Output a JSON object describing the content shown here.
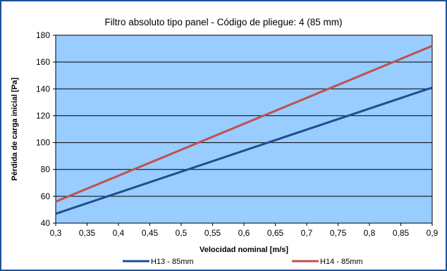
{
  "chart_data": {
    "type": "line",
    "title": "Filtro absoluto tipo panel - Código de pliegue: 4 (85 mm)",
    "xlabel": "Velocidad nominal [m/s]",
    "ylabel": "Pérdida de carga inicial [Pa]",
    "xlim": [
      0.3,
      0.9
    ],
    "ylim": [
      40,
      180
    ],
    "x_ticks": [
      "0,3",
      "0,35",
      "0,4",
      "0,45",
      "0,5",
      "0,55",
      "0,6",
      "0,65",
      "0,7",
      "0,75",
      "0,8",
      "0,85",
      "0,9"
    ],
    "y_ticks": [
      "40",
      "60",
      "80",
      "100",
      "120",
      "140",
      "160",
      "180"
    ],
    "grid": "horizontal",
    "legend_position": "bottom",
    "plot_background": "#99ccff",
    "series": [
      {
        "name": "H13 - 85mm",
        "color": "#1f4e8c",
        "x": [
          0.3,
          0.9
        ],
        "y": [
          47,
          141
        ]
      },
      {
        "name": "H14 - 85mm",
        "color": "#c0504d",
        "x": [
          0.3,
          0.9
        ],
        "y": [
          56,
          172
        ]
      }
    ]
  }
}
